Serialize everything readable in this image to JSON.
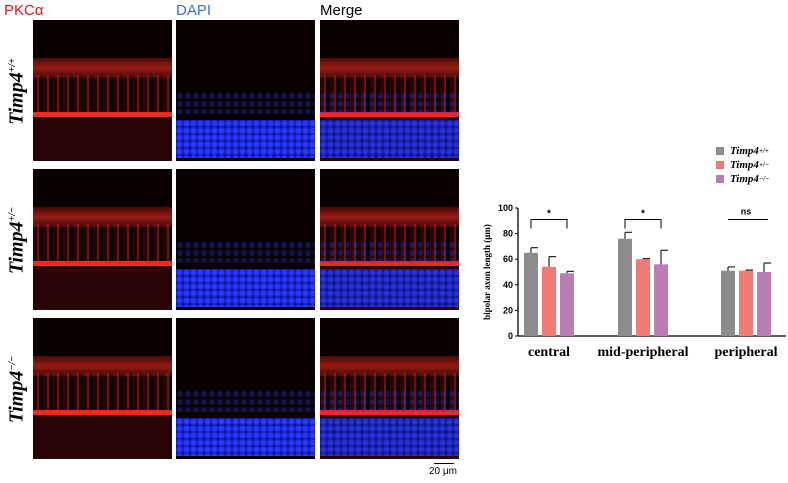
{
  "columns": [
    {
      "label": "PKCα",
      "color": "#e8141a"
    },
    {
      "label": "DAPI",
      "color": "#3b6fe0"
    },
    {
      "label": "Merge",
      "color": "#000000"
    }
  ],
  "rows": [
    {
      "base": "Timp4",
      "sup": "+/+"
    },
    {
      "base": "Timp4",
      "sup": "+/−"
    },
    {
      "base": "Timp4",
      "sup": "−/−"
    }
  ],
  "scale_bar": "20 μm",
  "chart_data": {
    "type": "bar",
    "title": "",
    "xlabel": "",
    "ylabel": "bipolar axon length (μm)",
    "ylim": [
      0,
      100
    ],
    "yticks": [
      0,
      20,
      40,
      60,
      80,
      100
    ],
    "categories": [
      "central",
      "mid-peripheral",
      "peripheral"
    ],
    "series": [
      {
        "name": "Timp4+/+",
        "color": "#8c8c8c",
        "values": [
          65,
          76,
          51
        ],
        "errors": [
          4,
          5,
          3
        ]
      },
      {
        "name": "Timp4+/−",
        "color": "#f07a74",
        "values": [
          54,
          60,
          51
        ],
        "errors": [
          8,
          0.5,
          0.5
        ]
      },
      {
        "name": "Timp4−/−",
        "color": "#b97fb4",
        "values": [
          49,
          56,
          50
        ],
        "errors": [
          1.5,
          11,
          7
        ]
      }
    ],
    "annotations": [
      {
        "category": "central",
        "text": "*"
      },
      {
        "category": "mid-peripheral",
        "text": "*"
      },
      {
        "category": "peripheral",
        "text": "ns"
      }
    ],
    "legend_position": "upper right",
    "grid": false
  }
}
